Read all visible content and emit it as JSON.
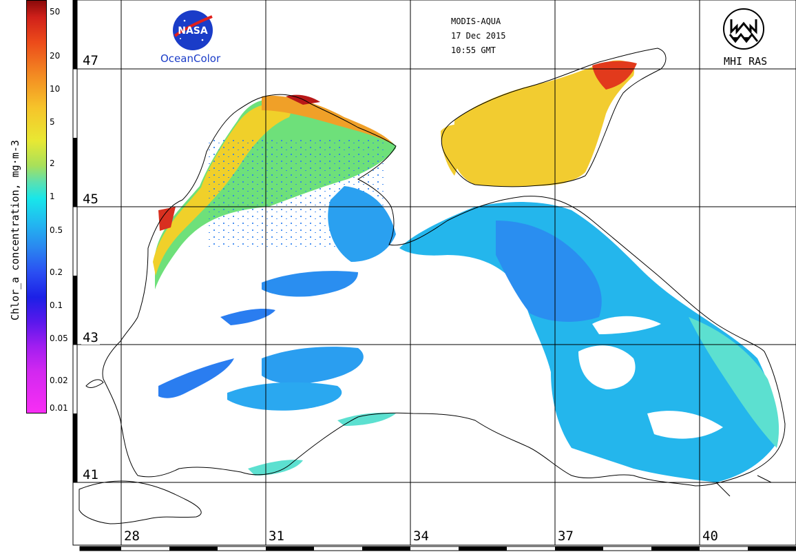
{
  "header": {
    "sensor": "MODIS-AQUA",
    "date": "17 Dec 2015",
    "time": "10:55 GMT"
  },
  "logos": {
    "nasa_text": "NASA",
    "oceancolor_text": "OceanColor",
    "mhi_text": "MHI RAS"
  },
  "colorbar": {
    "title": "Chlor_a concentration, mg·m-3",
    "ticks": [
      "50",
      "20",
      "10",
      "5",
      "2",
      "1",
      "0.5",
      "0.2",
      "0.1",
      "0.05",
      "0.02",
      "0.01"
    ],
    "colors": {
      "high": "#8a0a0a",
      "mid": "#18e6ea",
      "low": "#f82ef4"
    }
  },
  "grid": {
    "latitudes": [
      "47",
      "45",
      "43",
      "41"
    ],
    "longitudes": [
      "28",
      "31",
      "34",
      "37",
      "40"
    ]
  },
  "colors": {
    "land_bg": "#ffffff",
    "coast": "#000000",
    "chl_low": "#2aa8f2",
    "chl_mid": "#5ce0d0",
    "chl_high": "#f0c02c",
    "chl_vhigh": "#e23a1c"
  }
}
